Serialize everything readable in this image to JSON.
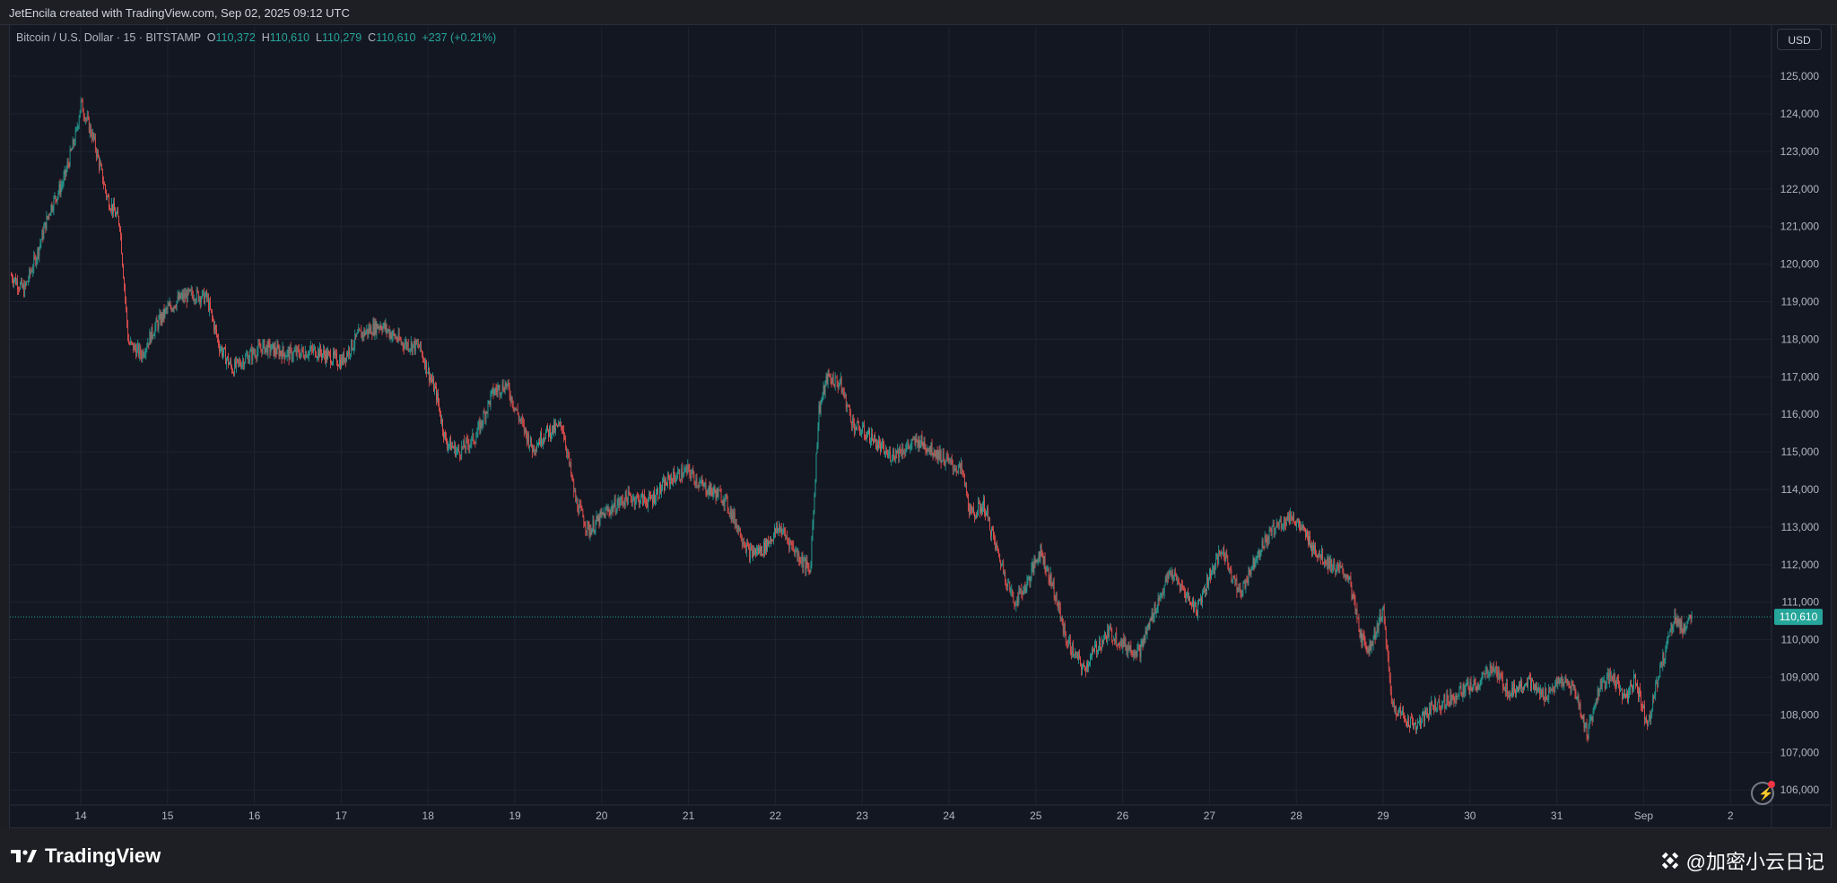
{
  "header": {
    "credit": "JetEncila created with TradingView.com, Sep 02, 2025 09:12 UTC"
  },
  "legend": {
    "symbol": "Bitcoin / U.S. Dollar · 15 · BITSTAMP",
    "o_label": "O",
    "o_value": "110,372",
    "h_label": "H",
    "h_value": "110,610",
    "l_label": "L",
    "l_value": "110,279",
    "c_label": "C",
    "c_value": "110,610",
    "change": "+237 (+0.21%)"
  },
  "currency_button": "USD",
  "branding": {
    "logo_text": "TradingView",
    "watermark": "@加密小云日记"
  },
  "icons": {
    "replay": "replay-icon",
    "logo": "tradingview-logo-icon",
    "binance": "binance-square-icon"
  },
  "colors": {
    "up": "#26a69a",
    "down": "#ef5350",
    "bg": "#131722",
    "grid": "#1f2330",
    "price_tag": "#26a69a"
  },
  "chart_data": {
    "type": "candlestick",
    "title": "Bitcoin / U.S. Dollar · 15 · BITSTAMP",
    "interval": "15",
    "x_ticks": [
      "14",
      "15",
      "16",
      "17",
      "18",
      "19",
      "20",
      "21",
      "22",
      "23",
      "24",
      "25",
      "26",
      "27",
      "28",
      "29",
      "30",
      "31",
      "Sep",
      "2"
    ],
    "y_ticks": [
      "106,000",
      "107,000",
      "108,000",
      "109,000",
      "110,000",
      "111,000",
      "112,000",
      "113,000",
      "114,000",
      "115,000",
      "116,000",
      "117,000",
      "118,000",
      "119,000",
      "120,000",
      "121,000",
      "122,000",
      "123,000",
      "124,000",
      "125,000"
    ],
    "ylim": [
      105600,
      125600
    ],
    "x_range_days": [
      13.2,
      2.35
    ],
    "last_price": 110610,
    "last_price_label": "110,610",
    "price_path": [
      [
        13.2,
        119700
      ],
      [
        13.35,
        119300
      ],
      [
        13.5,
        120300
      ],
      [
        13.65,
        121500
      ],
      [
        13.8,
        122200
      ],
      [
        13.95,
        123500
      ],
      [
        14.0,
        124300
      ],
      [
        14.15,
        123300
      ],
      [
        14.3,
        121800
      ],
      [
        14.45,
        121100
      ],
      [
        14.55,
        117900
      ],
      [
        14.7,
        117600
      ],
      [
        14.85,
        118300
      ],
      [
        15.0,
        118800
      ],
      [
        15.15,
        119100
      ],
      [
        15.3,
        119200
      ],
      [
        15.45,
        119100
      ],
      [
        15.6,
        117800
      ],
      [
        15.75,
        117200
      ],
      [
        15.9,
        117500
      ],
      [
        16.1,
        117800
      ],
      [
        16.4,
        117600
      ],
      [
        16.7,
        117700
      ],
      [
        17.0,
        117400
      ],
      [
        17.2,
        118100
      ],
      [
        17.45,
        118400
      ],
      [
        17.7,
        117900
      ],
      [
        17.9,
        117800
      ],
      [
        18.1,
        116500
      ],
      [
        18.2,
        115300
      ],
      [
        18.35,
        115000
      ],
      [
        18.55,
        115400
      ],
      [
        18.75,
        116600
      ],
      [
        18.9,
        116800
      ],
      [
        19.05,
        115900
      ],
      [
        19.2,
        115100
      ],
      [
        19.35,
        115500
      ],
      [
        19.55,
        115700
      ],
      [
        19.7,
        113700
      ],
      [
        19.85,
        112900
      ],
      [
        20.05,
        113400
      ],
      [
        20.3,
        113800
      ],
      [
        20.55,
        113700
      ],
      [
        20.8,
        114300
      ],
      [
        21.0,
        114500
      ],
      [
        21.15,
        114100
      ],
      [
        21.4,
        113800
      ],
      [
        21.55,
        113100
      ],
      [
        21.7,
        112300
      ],
      [
        21.85,
        112400
      ],
      [
        22.05,
        113000
      ],
      [
        22.25,
        112300
      ],
      [
        22.4,
        111800
      ],
      [
        22.5,
        116100
      ],
      [
        22.6,
        117000
      ],
      [
        22.75,
        116800
      ],
      [
        22.9,
        115700
      ],
      [
        23.1,
        115400
      ],
      [
        23.3,
        114900
      ],
      [
        23.5,
        115100
      ],
      [
        23.65,
        115300
      ],
      [
        23.85,
        115000
      ],
      [
        24.0,
        114700
      ],
      [
        24.15,
        114500
      ],
      [
        24.25,
        113300
      ],
      [
        24.4,
        113600
      ],
      [
        24.55,
        112400
      ],
      [
        24.75,
        111000
      ],
      [
        24.9,
        111500
      ],
      [
        25.05,
        112400
      ],
      [
        25.2,
        111400
      ],
      [
        25.35,
        110000
      ],
      [
        25.55,
        109200
      ],
      [
        25.7,
        109800
      ],
      [
        25.85,
        110200
      ],
      [
        26.05,
        109800
      ],
      [
        26.2,
        109700
      ],
      [
        26.35,
        110700
      ],
      [
        26.55,
        111800
      ],
      [
        26.7,
        111300
      ],
      [
        26.85,
        110800
      ],
      [
        27.0,
        111700
      ],
      [
        27.15,
        112400
      ],
      [
        27.35,
        111200
      ],
      [
        27.55,
        112300
      ],
      [
        27.75,
        113000
      ],
      [
        27.95,
        113300
      ],
      [
        28.1,
        112800
      ],
      [
        28.25,
        112300
      ],
      [
        28.45,
        111900
      ],
      [
        28.6,
        111700
      ],
      [
        28.75,
        110000
      ],
      [
        28.85,
        109800
      ],
      [
        29.0,
        110800
      ],
      [
        29.1,
        108300
      ],
      [
        29.25,
        107900
      ],
      [
        29.4,
        107700
      ],
      [
        29.55,
        108200
      ],
      [
        29.75,
        108400
      ],
      [
        29.95,
        108700
      ],
      [
        30.1,
        108800
      ],
      [
        30.25,
        109300
      ],
      [
        30.45,
        108600
      ],
      [
        30.65,
        108900
      ],
      [
        30.85,
        108500
      ],
      [
        31.05,
        108900
      ],
      [
        31.2,
        108700
      ],
      [
        31.35,
        107500
      ],
      [
        31.5,
        108800
      ],
      [
        31.65,
        109000
      ],
      [
        31.8,
        108400
      ],
      [
        31.9,
        109000
      ],
      [
        32.0,
        108100
      ],
      [
        32.05,
        107800
      ],
      [
        32.2,
        109300
      ],
      [
        32.35,
        110600
      ],
      [
        32.45,
        110300
      ],
      [
        32.55,
        110610
      ]
    ]
  }
}
